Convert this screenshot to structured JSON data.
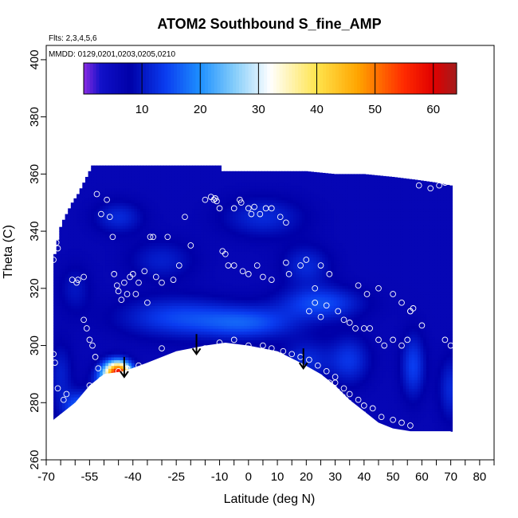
{
  "chart_data": {
    "type": "heatmap",
    "title": "ATOM2 Southbound S_fine_AMP",
    "annotations": {
      "flights": "Flts: 2,3,4,5,6",
      "dates": "MMDD: 0129,0201,0203,0205,0210"
    },
    "xlabel": "Latitude (deg N)",
    "ylabel": "Theta (C)",
    "xlim": [
      -70,
      85
    ],
    "ylim": [
      260,
      405
    ],
    "x_ticks": [
      -70,
      -55,
      -40,
      -25,
      -10,
      0,
      10,
      20,
      30,
      40,
      50,
      60,
      70,
      80
    ],
    "x_tick_labels": [
      "-70",
      "-55",
      "-40",
      "-25",
      "-10",
      "0",
      "10",
      "20",
      "30",
      "40",
      "50",
      "60",
      "70",
      "80"
    ],
    "x_minor_ticks": [
      -65,
      -60,
      -50,
      -45,
      -35,
      -30,
      -20,
      -15,
      -5,
      5,
      15,
      25,
      35,
      45,
      55,
      65,
      75,
      85
    ],
    "y_ticks": [
      260,
      280,
      300,
      320,
      340,
      360,
      380,
      400
    ],
    "y_tick_labels": [
      "260",
      "280",
      "300",
      "320",
      "340",
      "360",
      "380",
      "400"
    ],
    "colorbar": {
      "min": 0,
      "max": 64,
      "ticks": [
        10,
        20,
        30,
        40,
        50,
        60
      ],
      "tick_labels": [
        "10",
        "20",
        "30",
        "40",
        "50",
        "60"
      ],
      "stops": [
        {
          "v": 0,
          "color": "#8a2be2"
        },
        {
          "v": 3,
          "color": "#1010c8"
        },
        {
          "v": 8,
          "color": "#0000a8"
        },
        {
          "v": 14,
          "color": "#0a3cf0"
        },
        {
          "v": 20,
          "color": "#1e90ff"
        },
        {
          "v": 26,
          "color": "#87cefa"
        },
        {
          "v": 32,
          "color": "#ffffff"
        },
        {
          "v": 40,
          "color": "#ffe44d"
        },
        {
          "v": 47,
          "color": "#ffa500"
        },
        {
          "v": 55,
          "color": "#ff2a00"
        },
        {
          "v": 60,
          "color": "#e00000"
        },
        {
          "v": 64,
          "color": "#a31c1c"
        }
      ]
    },
    "coverage_top": [
      [
        -67.5,
        330
      ],
      [
        -66.5,
        334
      ],
      [
        -65.5,
        340
      ],
      [
        -64.5,
        343
      ],
      [
        -63.5,
        345
      ],
      [
        -62.5,
        347
      ],
      [
        -61.5,
        349
      ],
      [
        -60.5,
        351
      ],
      [
        -59.5,
        352
      ],
      [
        -58.5,
        354
      ],
      [
        -57.5,
        356
      ],
      [
        -56.5,
        358
      ],
      [
        -55.5,
        360
      ],
      [
        -54.5,
        362
      ],
      [
        -54,
        363
      ],
      [
        -10,
        363
      ],
      [
        -10,
        361
      ],
      [
        20,
        361
      ],
      [
        30,
        360
      ],
      [
        40,
        360
      ],
      [
        50,
        359
      ],
      [
        58,
        358
      ],
      [
        65,
        357
      ],
      [
        70,
        356
      ]
    ],
    "coverage_bottom": [
      [
        -67.5,
        274
      ],
      [
        -60,
        280
      ],
      [
        -55,
        286
      ],
      [
        -50,
        290
      ],
      [
        -43,
        291
      ],
      [
        -35,
        294
      ],
      [
        -25,
        298
      ],
      [
        -15,
        300
      ],
      [
        -8,
        301
      ],
      [
        0,
        300
      ],
      [
        10,
        298
      ],
      [
        18,
        294
      ],
      [
        25,
        290
      ],
      [
        30,
        286
      ],
      [
        35,
        281
      ],
      [
        40,
        277
      ],
      [
        45,
        273
      ],
      [
        50,
        271
      ],
      [
        56,
        270
      ],
      [
        62,
        270
      ],
      [
        65,
        270
      ],
      [
        70,
        270
      ]
    ],
    "mean_field": 6,
    "hotspots": [
      {
        "lat": -45,
        "theta": 291,
        "value": 47,
        "sx": 3.0,
        "sy": 2.5
      },
      {
        "lat": -47,
        "theta": 288,
        "value": 24,
        "sx": 4.0,
        "sy": 4.0
      },
      {
        "lat": -58,
        "theta": 278,
        "value": 18,
        "sx": 4.0,
        "sy": 4.0
      },
      {
        "lat": -25,
        "theta": 310,
        "value": 14,
        "sx": 14.0,
        "sy": 5.0
      },
      {
        "lat": 0,
        "theta": 308,
        "value": 15,
        "sx": 12.0,
        "sy": 4.0
      },
      {
        "lat": 25,
        "theta": 315,
        "value": 15,
        "sx": 10.0,
        "sy": 4.0
      },
      {
        "lat": 20,
        "theta": 295,
        "value": 12,
        "sx": 6.0,
        "sy": 5.0
      },
      {
        "lat": 35,
        "theta": 295,
        "value": 13,
        "sx": 5.0,
        "sy": 6.0
      },
      {
        "lat": -45,
        "theta": 345,
        "value": 12,
        "sx": 6.0,
        "sy": 4.0
      },
      {
        "lat": -30,
        "theta": 330,
        "value": 11,
        "sx": 8.0,
        "sy": 5.0
      },
      {
        "lat": 5,
        "theta": 345,
        "value": 12,
        "sx": 10.0,
        "sy": 5.0
      },
      {
        "lat": 20,
        "theta": 328,
        "value": 12,
        "sx": 6.0,
        "sy": 5.0
      },
      {
        "lat": 57,
        "theta": 293,
        "value": 14,
        "sx": 3.0,
        "sy": 8.0
      },
      {
        "lat": 70,
        "theta": 285,
        "value": 12,
        "sx": 3.0,
        "sy": 8.0
      },
      {
        "lat": -60,
        "theta": 320,
        "value": 10,
        "sx": 4.0,
        "sy": 6.0
      },
      {
        "lat": -65,
        "theta": 290,
        "value": 11,
        "sx": 3.0,
        "sy": 8.0
      }
    ],
    "arrows": [
      {
        "lat": -43,
        "theta_top": 296,
        "theta_tip": 289
      },
      {
        "lat": -18,
        "theta_top": 304,
        "theta_tip": 297
      },
      {
        "lat": 19,
        "theta_top": 299,
        "theta_tip": 292
      }
    ],
    "samples": [
      [
        -67.5,
        330
      ],
      [
        -66.5,
        336
      ],
      [
        -66,
        334
      ],
      [
        -61,
        323
      ],
      [
        -59.5,
        322
      ],
      [
        -59,
        323
      ],
      [
        -57,
        324
      ],
      [
        -52.5,
        353
      ],
      [
        -51,
        346
      ],
      [
        -49,
        351
      ],
      [
        -48,
        345
      ],
      [
        -47,
        338
      ],
      [
        -46.5,
        325
      ],
      [
        -45.5,
        321
      ],
      [
        -45,
        319
      ],
      [
        -44,
        316
      ],
      [
        -43,
        322
      ],
      [
        -42,
        318
      ],
      [
        -41,
        324
      ],
      [
        -40,
        325
      ],
      [
        -39,
        318
      ],
      [
        -38,
        322
      ],
      [
        -36,
        326
      ],
      [
        -35,
        315
      ],
      [
        -34,
        338
      ],
      [
        -33,
        338
      ],
      [
        -32,
        324
      ],
      [
        -30,
        322
      ],
      [
        -28,
        338
      ],
      [
        -26,
        323
      ],
      [
        -24,
        328
      ],
      [
        -22,
        345
      ],
      [
        -20,
        335
      ],
      [
        -15,
        351
      ],
      [
        -13,
        352
      ],
      [
        -12,
        351
      ],
      [
        -11.5,
        351.5
      ],
      [
        -11,
        350.5
      ],
      [
        -10,
        348
      ],
      [
        -5,
        348
      ],
      [
        -3,
        351
      ],
      [
        -2.5,
        350
      ],
      [
        0,
        348
      ],
      [
        1,
        346
      ],
      [
        2,
        348.5
      ],
      [
        4,
        346
      ],
      [
        6,
        348
      ],
      [
        8,
        348
      ],
      [
        11,
        345
      ],
      [
        13,
        343
      ],
      [
        -9,
        333
      ],
      [
        -8,
        332
      ],
      [
        -7,
        328
      ],
      [
        -5,
        328
      ],
      [
        -2,
        326
      ],
      [
        0,
        325
      ],
      [
        3,
        328
      ],
      [
        5,
        324
      ],
      [
        8,
        323
      ],
      [
        13,
        329
      ],
      [
        14,
        325
      ],
      [
        18,
        328
      ],
      [
        20,
        330
      ],
      [
        23,
        320
      ],
      [
        25,
        328
      ],
      [
        28,
        325
      ],
      [
        21,
        312
      ],
      [
        23,
        315
      ],
      [
        25,
        310
      ],
      [
        27,
        314
      ],
      [
        31,
        312
      ],
      [
        33,
        309
      ],
      [
        35,
        308
      ],
      [
        37,
        306
      ],
      [
        38,
        321
      ],
      [
        41,
        318
      ],
      [
        45,
        320
      ],
      [
        50,
        318
      ],
      [
        53,
        315
      ],
      [
        56,
        312
      ],
      [
        57,
        313
      ],
      [
        40,
        306
      ],
      [
        42,
        306
      ],
      [
        45,
        302
      ],
      [
        47,
        300
      ],
      [
        50,
        302
      ],
      [
        53,
        300
      ],
      [
        55,
        302
      ],
      [
        59,
        356
      ],
      [
        63,
        355
      ],
      [
        66,
        356
      ],
      [
        68,
        357
      ],
      [
        -57,
        309
      ],
      [
        -56,
        306
      ],
      [
        -55,
        302
      ],
      [
        -54,
        300
      ],
      [
        -53,
        296
      ],
      [
        -52,
        292
      ],
      [
        -51,
        288
      ],
      [
        -50,
        282
      ],
      [
        -49,
        281
      ],
      [
        -55,
        286
      ],
      [
        -58,
        280
      ],
      [
        -60,
        278
      ],
      [
        -61,
        277
      ],
      [
        -62,
        276
      ],
      [
        -45,
        291
      ],
      [
        -42,
        292
      ],
      [
        -38,
        293
      ],
      [
        -30,
        299
      ],
      [
        -15,
        299
      ],
      [
        -10,
        301
      ],
      [
        -5,
        302
      ],
      [
        0,
        300
      ],
      [
        5,
        300
      ],
      [
        8,
        299
      ],
      [
        12,
        298
      ],
      [
        15,
        297
      ],
      [
        18,
        296
      ],
      [
        21,
        295
      ],
      [
        24,
        293
      ],
      [
        27,
        291
      ],
      [
        30,
        287
      ],
      [
        33,
        285
      ],
      [
        35,
        283
      ],
      [
        38,
        281
      ],
      [
        40,
        279
      ],
      [
        43,
        278
      ],
      [
        46,
        275
      ],
      [
        50,
        274
      ],
      [
        53,
        273
      ],
      [
        56,
        272
      ],
      [
        70,
        300
      ],
      [
        68,
        302
      ],
      [
        60,
        307
      ],
      [
        56,
        312
      ],
      [
        30,
        289
      ],
      [
        28,
        287
      ],
      [
        -67.5,
        297
      ],
      [
        -67,
        294
      ],
      [
        -66,
        285
      ],
      [
        -63,
        283
      ],
      [
        -64,
        281
      ]
    ]
  }
}
